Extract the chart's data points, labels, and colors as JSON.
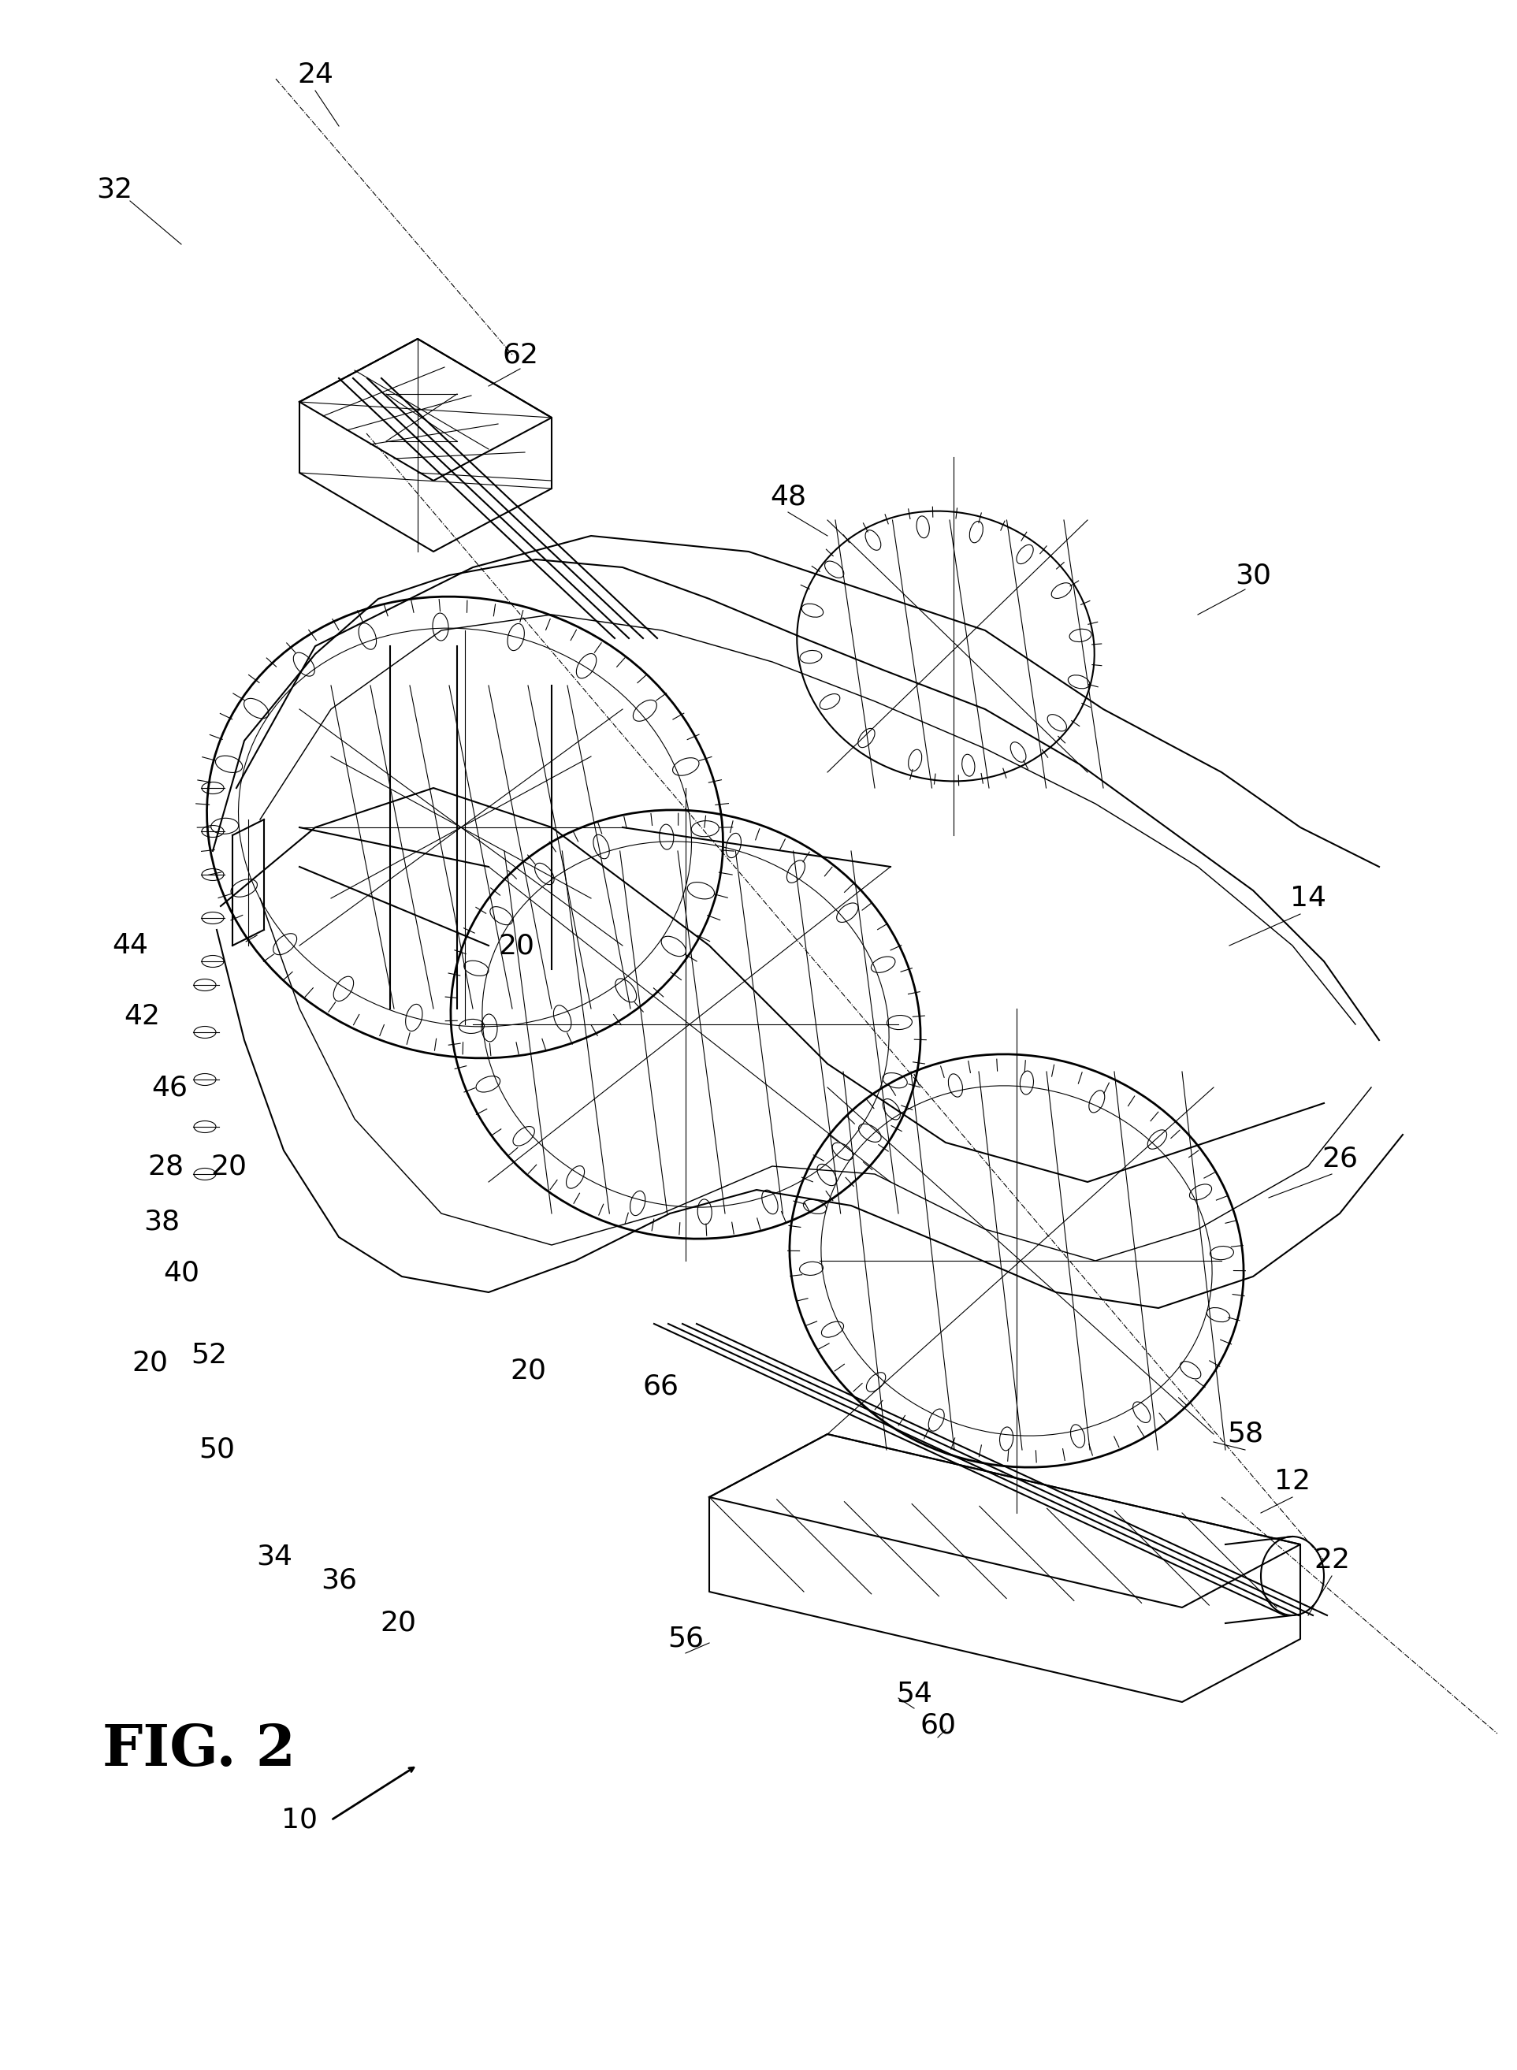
{
  "fig_label": "FIG. 2",
  "bg_color": "#ffffff",
  "line_color": "#000000",
  "linewidth": 1.5,
  "thin_linewidth": 0.8,
  "refs": [
    [
      "24",
      400,
      95
    ],
    [
      "32",
      145,
      240
    ],
    [
      "62",
      660,
      450
    ],
    [
      "48",
      1000,
      630
    ],
    [
      "30",
      1590,
      730
    ],
    [
      "14",
      1660,
      1140
    ],
    [
      "44",
      165,
      1200
    ],
    [
      "42",
      180,
      1290
    ],
    [
      "46",
      215,
      1380
    ],
    [
      "28",
      210,
      1480
    ],
    [
      "38",
      205,
      1550
    ],
    [
      "40",
      230,
      1615
    ],
    [
      "52",
      265,
      1720
    ],
    [
      "50",
      275,
      1840
    ],
    [
      "34",
      348,
      1975
    ],
    [
      "36",
      430,
      2005
    ],
    [
      "20",
      505,
      2060
    ],
    [
      "26",
      1700,
      1470
    ],
    [
      "20",
      190,
      1730
    ],
    [
      "20",
      290,
      1480
    ],
    [
      "20",
      655,
      1200
    ],
    [
      "20",
      670,
      1740
    ],
    [
      "58",
      1580,
      1820
    ],
    [
      "12",
      1640,
      1880
    ],
    [
      "22",
      1690,
      1980
    ],
    [
      "56",
      870,
      2080
    ],
    [
      "54",
      1160,
      2150
    ],
    [
      "60",
      1190,
      2190
    ],
    [
      "66",
      838,
      1760
    ],
    [
      "10",
      380,
      2310
    ]
  ]
}
